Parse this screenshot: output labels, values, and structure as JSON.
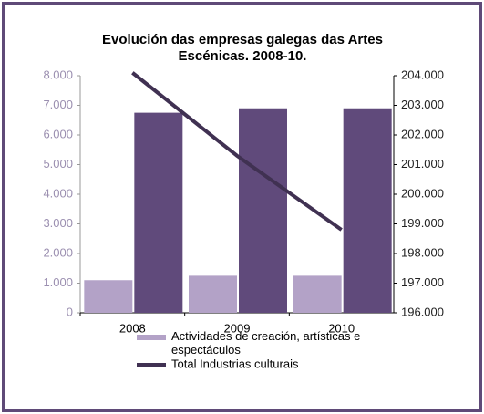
{
  "chart_data": {
    "type": "bar_line",
    "title": [
      "Evolución das empresas galegas das Artes",
      "Escénicas. 2008-10."
    ],
    "categories": [
      "2008",
      "2009",
      "2010"
    ],
    "series": [
      {
        "name": "Actividades de creación, artísticas e espectáculos",
        "color": "#b3a2c7",
        "type": "bar",
        "values": [
          1100,
          1250,
          1250
        ]
      },
      {
        "color": "#604a7b",
        "type": "bar",
        "values": [
          6750,
          6900,
          6900
        ]
      },
      {
        "name": "Total Industrias culturais",
        "color": "#403152",
        "type": "line",
        "axis": "y2",
        "values": [
          204100,
          201300,
          198800
        ]
      }
    ],
    "ylim": [
      0,
      8000
    ],
    "yticks": [
      {
        "value": 0,
        "label": "0"
      },
      {
        "value": 1000,
        "label": "1.000"
      },
      {
        "value": 2000,
        "label": "2.000"
      },
      {
        "value": 3000,
        "label": "3.000"
      },
      {
        "value": 4000,
        "label": "4.000"
      },
      {
        "value": 5000,
        "label": "5.000"
      },
      {
        "value": 6000,
        "label": "6.000"
      },
      {
        "value": 7000,
        "label": "7.000"
      },
      {
        "value": 8000,
        "label": "8.000"
      }
    ],
    "y2lim": [
      196000,
      204000
    ],
    "y2ticks": [
      {
        "value": 196000,
        "label": "196.000"
      },
      {
        "value": 197000,
        "label": "197.000"
      },
      {
        "value": 198000,
        "label": "198.000"
      },
      {
        "value": 199000,
        "label": "199.000"
      },
      {
        "value": 200000,
        "label": "200.000"
      },
      {
        "value": 201000,
        "label": "201.000"
      },
      {
        "value": 202000,
        "label": "202.000"
      },
      {
        "value": 203000,
        "label": "203.000"
      },
      {
        "value": 204000,
        "label": "204.000"
      }
    ],
    "legend": "bottom"
  }
}
